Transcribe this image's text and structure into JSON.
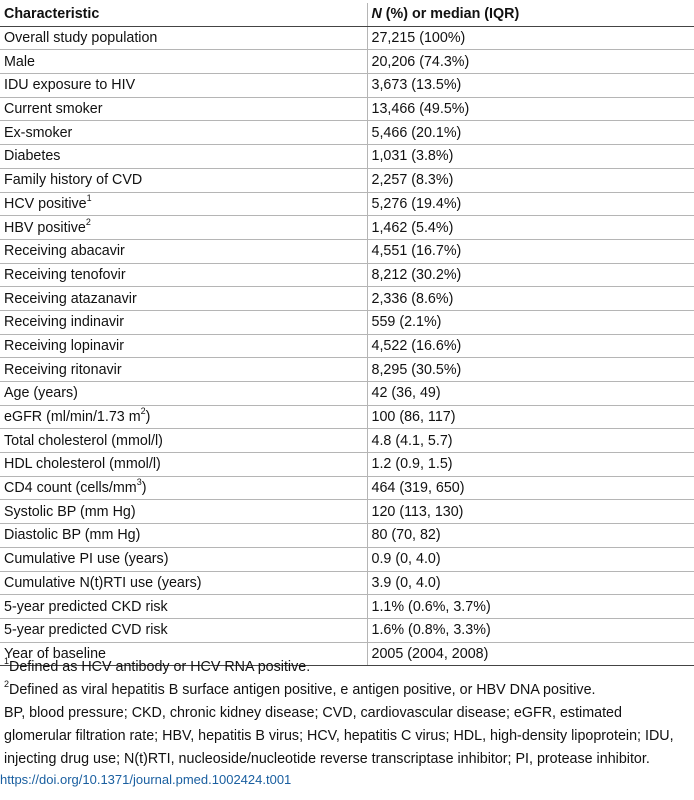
{
  "table": {
    "headers": {
      "characteristic": "Characteristic",
      "value_italic": "N",
      "value_rest": " (%) or median (IQR)"
    },
    "rows": [
      {
        "label": "Overall study population",
        "value": "27,215 (100%)"
      },
      {
        "label": "Male",
        "value": "20,206 (74.3%)"
      },
      {
        "label": "IDU exposure to HIV",
        "value": "3,673 (13.5%)"
      },
      {
        "label": "Current smoker",
        "value": "13,466 (49.5%)"
      },
      {
        "label": "Ex-smoker",
        "value": "5,466 (20.1%)"
      },
      {
        "label": "Diabetes",
        "value": "1,031 (3.8%)"
      },
      {
        "label": "Family history of CVD",
        "value": "2,257 (8.3%)"
      },
      {
        "label": "HCV positive",
        "sup": "1",
        "value": "5,276 (19.4%)"
      },
      {
        "label": "HBV positive",
        "sup": "2",
        "value": "1,462 (5.4%)"
      },
      {
        "label": "Receiving abacavir",
        "value": "4,551 (16.7%)"
      },
      {
        "label": "Receiving tenofovir",
        "value": "8,212 (30.2%)"
      },
      {
        "label": "Receiving atazanavir",
        "value": "2,336 (8.6%)"
      },
      {
        "label": "Receiving indinavir",
        "value": "559 (2.1%)"
      },
      {
        "label": "Receiving lopinavir",
        "value": "4,522 (16.6%)"
      },
      {
        "label": "Receiving ritonavir",
        "value": "8,295 (30.5%)"
      },
      {
        "label": "Age (years)",
        "value": "42 (36, 49)"
      },
      {
        "label": "eGFR (ml/min/1.73 m",
        "sup": "2",
        "label_after": ")",
        "value": "100 (86, 117)"
      },
      {
        "label": "Total cholesterol (mmol/l)",
        "value": "4.8 (4.1, 5.7)"
      },
      {
        "label": "HDL cholesterol (mmol/l)",
        "value": "1.2 (0.9, 1.5)"
      },
      {
        "label": "CD4 count (cells/mm",
        "sup": "3",
        "label_after": ")",
        "value": "464 (319, 650)"
      },
      {
        "label": "Systolic BP (mm Hg)",
        "value": "120 (113, 130)"
      },
      {
        "label": "Diastolic BP (mm Hg)",
        "value": "80 (70, 82)"
      },
      {
        "label": "Cumulative PI use (years)",
        "value": "0.9 (0, 4.0)"
      },
      {
        "label": "Cumulative N(t)RTI use (years)",
        "value": "3.9 (0, 4.0)"
      },
      {
        "label": "5-year predicted CKD risk",
        "value": "1.1% (0.6%, 3.7%)"
      },
      {
        "label": "5-year predicted CVD risk",
        "value": "1.6% (0.8%, 3.3%)"
      },
      {
        "label": "Year of baseline",
        "value": "2005 (2004, 2008)"
      }
    ]
  },
  "footnotes": {
    "fn1_sup": "1",
    "fn1_text": "Defined as HCV antibody or HCV RNA positive.",
    "fn2_sup": "2",
    "fn2_text": "Defined as viral hepatitis B surface antigen positive, e antigen positive, or HBV DNA positive.",
    "abbreviations": "BP, blood pressure; CKD, chronic kidney disease; CVD, cardiovascular disease; eGFR, estimated glomerular filtration rate; HBV, hepatitis B virus; HCV, hepatitis C virus; HDL, high-density lipoprotein; IDU, injecting drug use; N(t)RTI, nucleoside/nucleotide reverse transcriptase inhibitor; PI, protease inhibitor."
  },
  "doi": "https://doi.org/10.1371/journal.pmed.1002424.t001"
}
